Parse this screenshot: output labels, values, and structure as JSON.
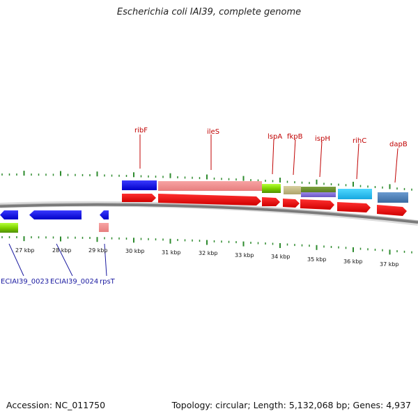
{
  "title": "Escherichia coli IAI39, complete genome",
  "footer": {
    "accession": "Accession: NC_011750",
    "summary": "Topology: circular; Length: 5,132,068 bp; Genes: 4,937"
  },
  "colors": {
    "tick": "#2e8b2e",
    "backbone": "#7a7a7a",
    "top_label": "#c00000",
    "bottom_label": "#1a1aa0"
  },
  "chart_data": {
    "type": "genome-map",
    "scale_unit": "kbp",
    "scale_labels": [
      "27 kbp",
      "28 kbp",
      "29 kbp",
      "30 kbp",
      "31 kbp",
      "32 kbp",
      "33 kbp",
      "34 kbp",
      "35 kbp",
      "36 kbp",
      "37 kbp"
    ],
    "forward_strand_labels": [
      "ribF",
      "ileS",
      "lspA",
      "fkpB",
      "ispH",
      "rihC",
      "dapB"
    ],
    "reverse_strand_labels": [
      "ECIAI39_0023",
      "ECIAI39_0024",
      "rpsT"
    ]
  }
}
